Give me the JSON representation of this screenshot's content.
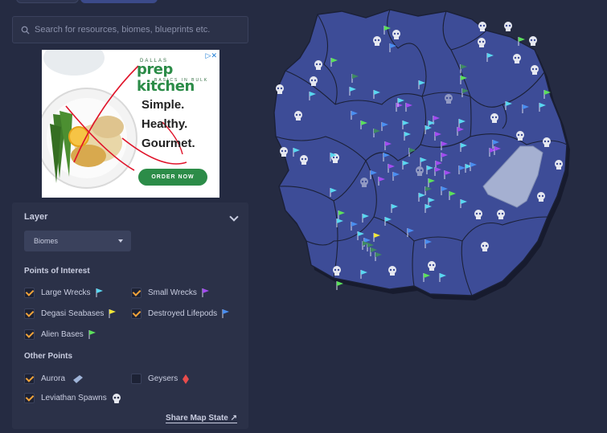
{
  "search": {
    "placeholder": "Search for resources, biomes, blueprints etc."
  },
  "ad": {
    "brand_top": "DALLAS",
    "brand": "prep kitchen",
    "brand_sub": "BASICS IN BULK",
    "lines": [
      "Simple.",
      "Healthy.",
      "Gourmet."
    ],
    "cta": "ORDER NOW",
    "close_glyph": "▷✕"
  },
  "panel": {
    "layer_heading": "Layer",
    "layer_select": "Biomes",
    "poi_heading": "Points of Interest",
    "poi": [
      {
        "label": "Large Wrecks",
        "checked": true,
        "icon": "flag-icon",
        "color": "#5ad7f0"
      },
      {
        "label": "Small Wrecks",
        "checked": true,
        "icon": "flag-icon",
        "color": "#a24cf0"
      },
      {
        "label": "Degasi Seabases",
        "checked": true,
        "icon": "flag-icon",
        "color": "#f0e63a"
      },
      {
        "label": "Destroyed Lifepods",
        "checked": true,
        "icon": "flag-icon",
        "color": "#4a8ef0"
      },
      {
        "label": "Alien Bases",
        "checked": true,
        "icon": "flag-icon",
        "color": "#5ce05c"
      }
    ],
    "other_heading": "Other Points",
    "other": [
      {
        "label": "Aurora",
        "checked": true,
        "icon": "aurora-icon",
        "color": "#9fb4d8"
      },
      {
        "label": "Geysers",
        "checked": false,
        "icon": "geyser-icon",
        "color": "#e84c4c"
      },
      {
        "label": "Leviathan Spawns",
        "checked": true,
        "icon": "skull-icon",
        "color": "#e6e8f0"
      }
    ],
    "share_label": "Share Map State ↗"
  },
  "map": {
    "land_color": "#3d4c97",
    "border_color": "#1b2036",
    "aurora_color": "#b8c2dc"
  }
}
